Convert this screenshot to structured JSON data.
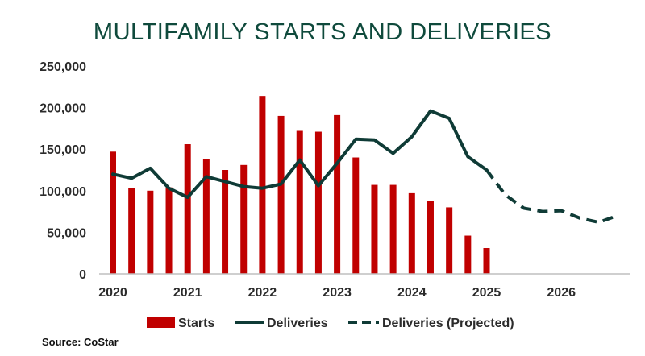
{
  "chart_data": {
    "type": "bar+line",
    "title": "MULTIFAMILY STARTS AND DELIVERIES",
    "source": "Source: CoStar",
    "xlabel": "",
    "ylabel": "",
    "ylim": [
      0,
      250000
    ],
    "y_ticks": [
      0,
      50000,
      100000,
      150000,
      200000,
      250000
    ],
    "y_tick_labels": [
      "0",
      "50,000",
      "100,000",
      "150,000",
      "200,000",
      "250,000"
    ],
    "x_tick_labels": [
      "2020",
      "2021",
      "2022",
      "2023",
      "2024",
      "2025",
      "2026"
    ],
    "x_tick_positions": [
      2020,
      2021,
      2022,
      2023,
      2024,
      2025,
      2026
    ],
    "xlim": [
      2020,
      2026.85
    ],
    "colors": {
      "starts": "#c00000",
      "deliveries": "#0f3b36",
      "axis": "#bfbfbf"
    },
    "series": [
      {
        "name": "Starts",
        "kind": "bar",
        "x": [
          2020,
          2020.25,
          2020.5,
          2020.75,
          2021,
          2021.25,
          2021.5,
          2021.75,
          2022,
          2022.25,
          2022.5,
          2022.75,
          2023,
          2023.25,
          2023.5,
          2023.75,
          2024,
          2024.25,
          2024.5,
          2024.75,
          2025
        ],
        "values": [
          147000,
          103000,
          100000,
          104000,
          156000,
          138000,
          125000,
          131000,
          214000,
          190000,
          172000,
          171000,
          191000,
          140000,
          107000,
          107000,
          97000,
          88000,
          80000,
          46000,
          31000
        ]
      },
      {
        "name": "Deliveries",
        "kind": "line",
        "x": [
          2020,
          2020.25,
          2020.5,
          2020.75,
          2021,
          2021.25,
          2021.5,
          2021.75,
          2022,
          2022.25,
          2022.5,
          2022.75,
          2023,
          2023.25,
          2023.5,
          2023.75,
          2024,
          2024.25,
          2024.5,
          2024.75,
          2025
        ],
        "values": [
          120000,
          115000,
          127000,
          103000,
          92000,
          117000,
          111000,
          105000,
          103000,
          108000,
          137000,
          106000,
          133000,
          162000,
          161000,
          145000,
          165000,
          196000,
          187000,
          141000,
          125000
        ]
      },
      {
        "name": "Deliveries (Projected)",
        "kind": "dashed-line",
        "x": [
          2025,
          2025.25,
          2025.5,
          2025.75,
          2026,
          2026.25,
          2026.5,
          2026.75
        ],
        "values": [
          125000,
          95000,
          79000,
          75000,
          76000,
          67000,
          62000,
          70000
        ]
      }
    ],
    "legend_position": "bottom"
  }
}
